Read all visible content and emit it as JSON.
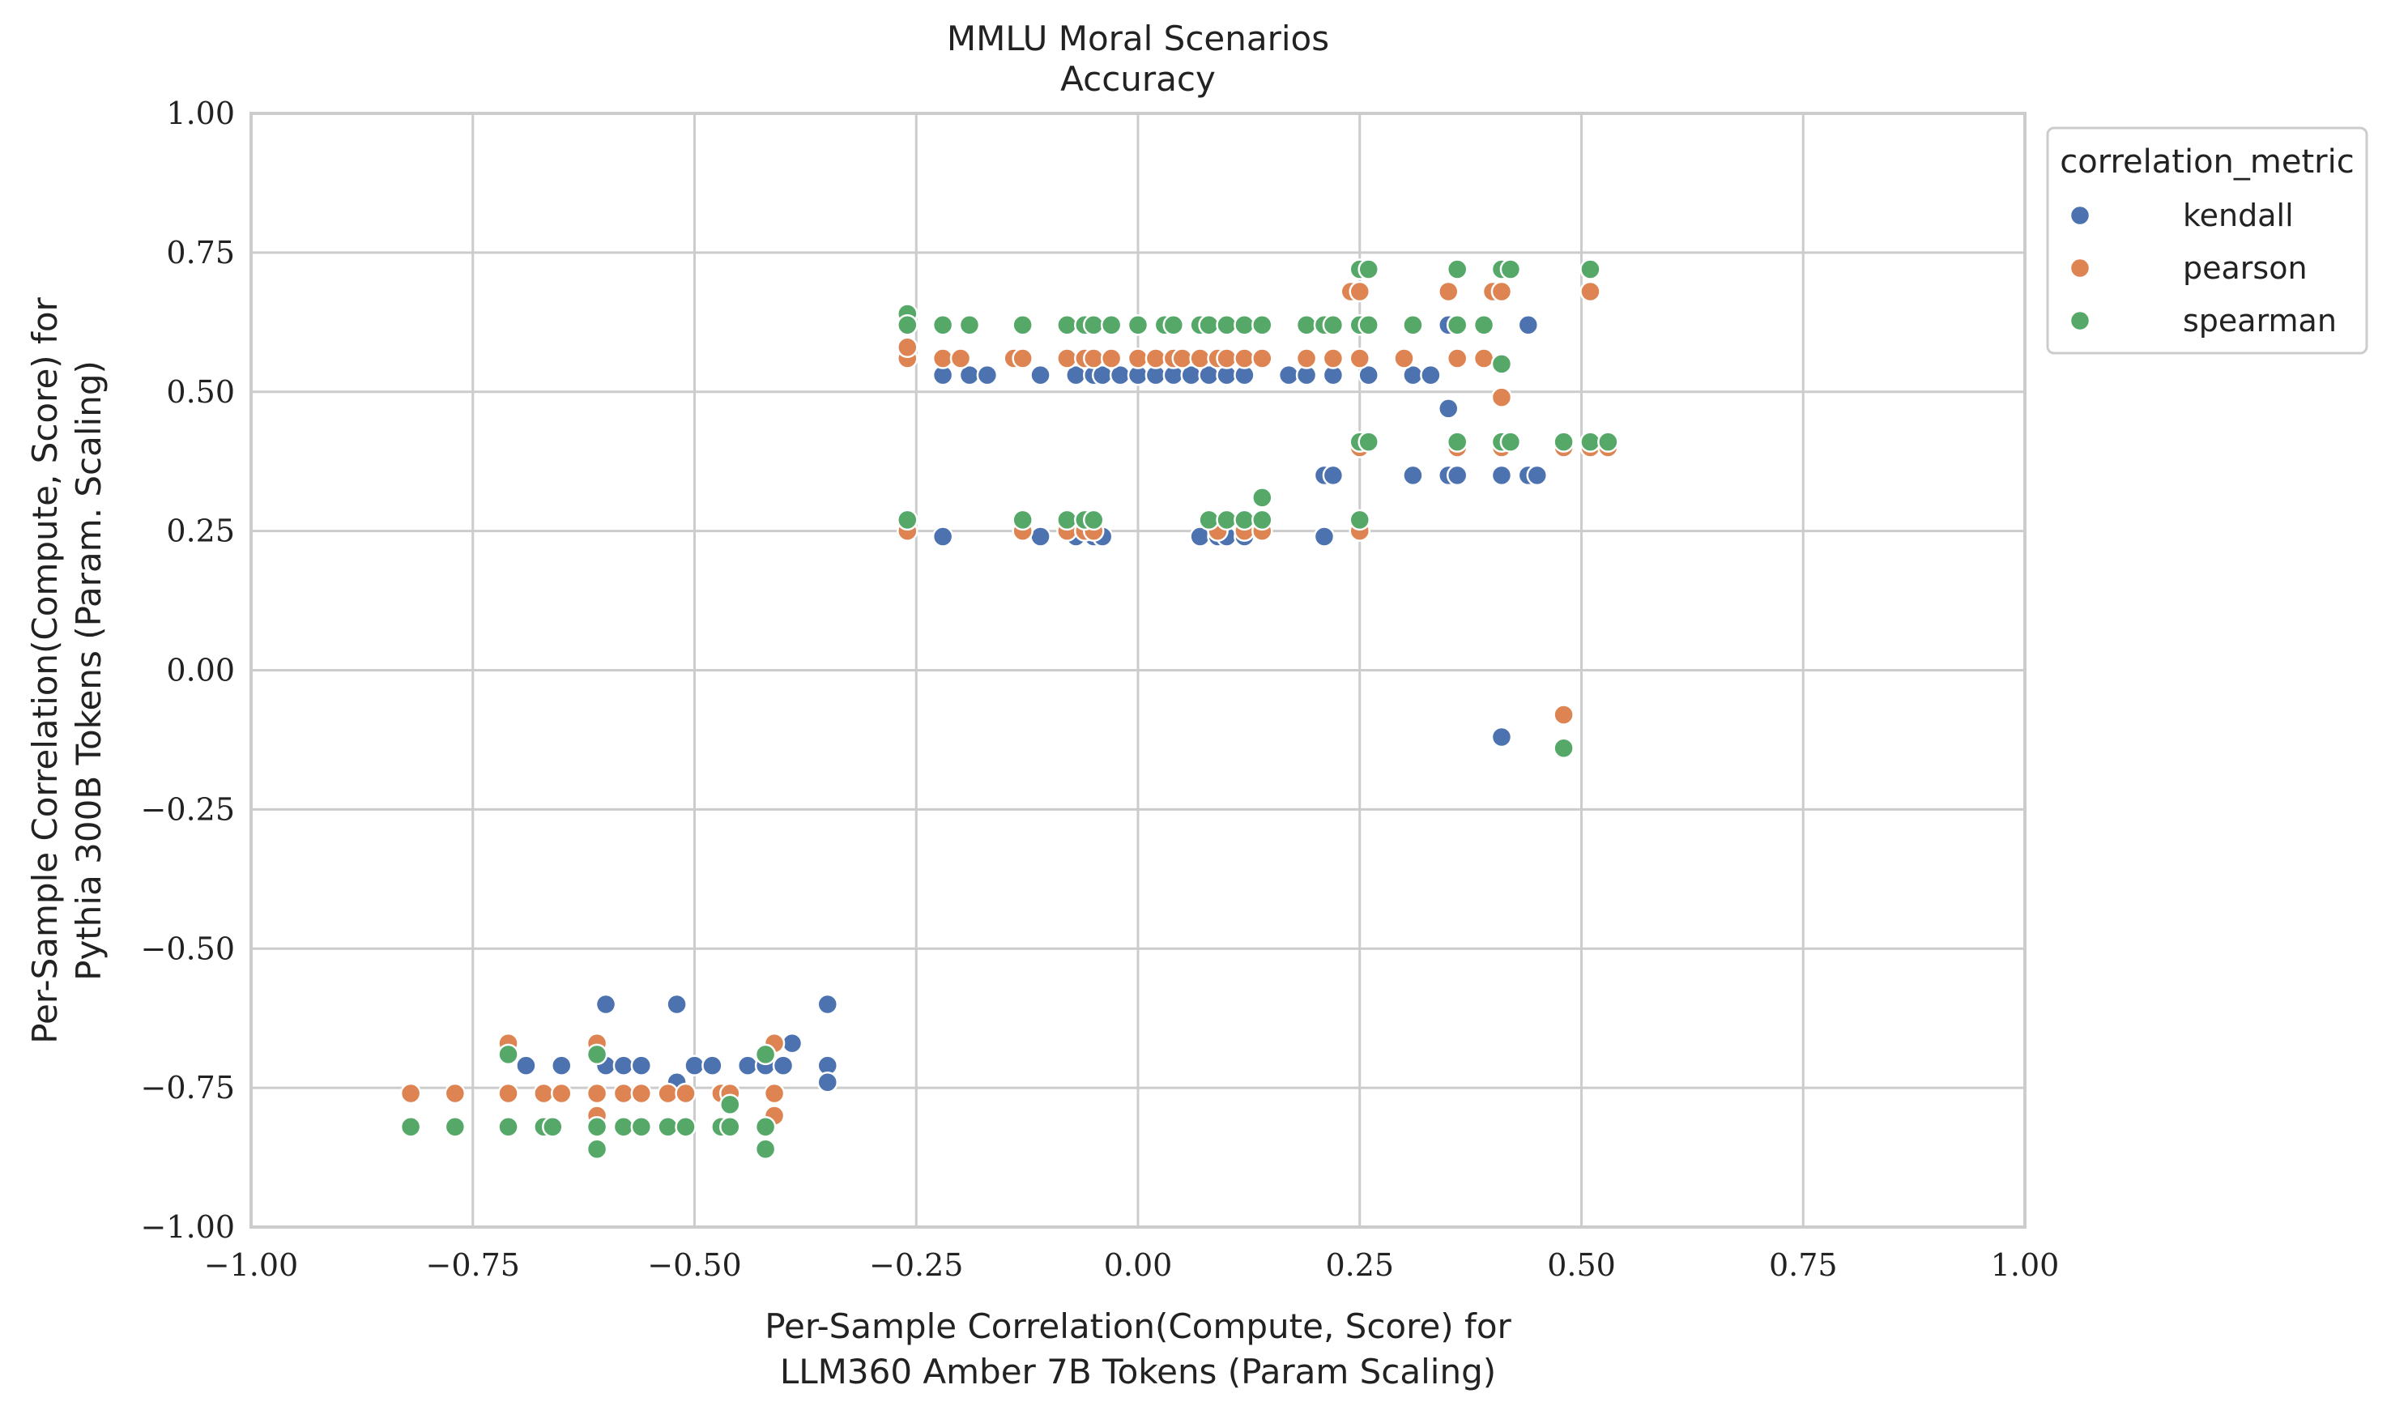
{
  "chart_data": {
    "type": "scatter",
    "title": "MMLU Moral Scenarios",
    "subtitle": "Accuracy",
    "xlabel_line1": "Per-Sample Correlation(Compute, Score) for",
    "xlabel_line2": "LLM360 Amber 7B Tokens (Param Scaling)",
    "ylabel_line1": "Per-Sample Correlation(Compute, Score) for",
    "ylabel_line2": "Pythia 300B Tokens (Param. Scaling)",
    "xlim": [
      -1.0,
      1.0
    ],
    "ylim": [
      -1.0,
      1.0
    ],
    "xticks": [
      -1.0,
      -0.75,
      -0.5,
      -0.25,
      0.0,
      0.25,
      0.5,
      0.75,
      1.0
    ],
    "yticks": [
      -1.0,
      -0.75,
      -0.5,
      -0.25,
      0.0,
      0.25,
      0.5,
      0.75,
      1.0
    ],
    "xtick_labels": [
      "−1.00",
      "−0.75",
      "−0.50",
      "−0.25",
      "0.00",
      "0.25",
      "0.50",
      "0.75",
      "1.00"
    ],
    "ytick_labels": [
      "−1.00",
      "−0.75",
      "−0.50",
      "−0.25",
      "0.00",
      "0.25",
      "0.50",
      "0.75",
      "1.00"
    ],
    "grid": true,
    "legend": {
      "title": "correlation_metric",
      "placement": "outside-top-right"
    },
    "series": [
      {
        "name": "kendall",
        "color": "#4c72b0",
        "points": [
          [
            -0.6,
            -0.6
          ],
          [
            -0.52,
            -0.6
          ],
          [
            -0.35,
            -0.6
          ],
          [
            -0.69,
            -0.71
          ],
          [
            -0.65,
            -0.71
          ],
          [
            -0.6,
            -0.71
          ],
          [
            -0.58,
            -0.71
          ],
          [
            -0.56,
            -0.71
          ],
          [
            -0.5,
            -0.71
          ],
          [
            -0.48,
            -0.71
          ],
          [
            -0.44,
            -0.71
          ],
          [
            -0.42,
            -0.71
          ],
          [
            -0.4,
            -0.71
          ],
          [
            -0.35,
            -0.71
          ],
          [
            -0.39,
            -0.67
          ],
          [
            -0.52,
            -0.74
          ],
          [
            -0.35,
            -0.74
          ],
          [
            -0.22,
            0.53
          ],
          [
            -0.19,
            0.53
          ],
          [
            -0.17,
            0.53
          ],
          [
            -0.11,
            0.53
          ],
          [
            -0.07,
            0.53
          ],
          [
            -0.05,
            0.53
          ],
          [
            -0.04,
            0.53
          ],
          [
            -0.02,
            0.53
          ],
          [
            0.0,
            0.53
          ],
          [
            0.02,
            0.53
          ],
          [
            0.04,
            0.53
          ],
          [
            0.06,
            0.53
          ],
          [
            0.08,
            0.53
          ],
          [
            0.1,
            0.53
          ],
          [
            0.12,
            0.53
          ],
          [
            0.17,
            0.53
          ],
          [
            0.19,
            0.53
          ],
          [
            0.22,
            0.53
          ],
          [
            0.26,
            0.53
          ],
          [
            0.31,
            0.53
          ],
          [
            0.33,
            0.53
          ],
          [
            -0.22,
            0.24
          ],
          [
            -0.11,
            0.24
          ],
          [
            -0.07,
            0.24
          ],
          [
            -0.05,
            0.24
          ],
          [
            -0.04,
            0.24
          ],
          [
            0.07,
            0.24
          ],
          [
            0.09,
            0.24
          ],
          [
            0.1,
            0.24
          ],
          [
            0.12,
            0.24
          ],
          [
            0.21,
            0.24
          ],
          [
            0.21,
            0.35
          ],
          [
            0.22,
            0.35
          ],
          [
            0.31,
            0.35
          ],
          [
            0.35,
            0.35
          ],
          [
            0.36,
            0.35
          ],
          [
            0.41,
            0.35
          ],
          [
            0.44,
            0.35
          ],
          [
            0.45,
            0.35
          ],
          [
            0.35,
            0.47
          ],
          [
            0.35,
            0.62
          ],
          [
            0.36,
            0.62
          ],
          [
            0.44,
            0.62
          ],
          [
            0.41,
            -0.12
          ]
        ]
      },
      {
        "name": "pearson",
        "color": "#dd8452",
        "points": [
          [
            -0.82,
            -0.76
          ],
          [
            -0.77,
            -0.76
          ],
          [
            -0.71,
            -0.76
          ],
          [
            -0.67,
            -0.76
          ],
          [
            -0.65,
            -0.76
          ],
          [
            -0.61,
            -0.76
          ],
          [
            -0.58,
            -0.76
          ],
          [
            -0.56,
            -0.76
          ],
          [
            -0.53,
            -0.76
          ],
          [
            -0.51,
            -0.76
          ],
          [
            -0.47,
            -0.76
          ],
          [
            -0.46,
            -0.76
          ],
          [
            -0.41,
            -0.76
          ],
          [
            -0.71,
            -0.67
          ],
          [
            -0.61,
            -0.67
          ],
          [
            -0.41,
            -0.67
          ],
          [
            -0.61,
            -0.8
          ],
          [
            -0.41,
            -0.8
          ],
          [
            -0.26,
            0.56
          ],
          [
            -0.26,
            0.58
          ],
          [
            -0.22,
            0.56
          ],
          [
            -0.2,
            0.56
          ],
          [
            -0.14,
            0.56
          ],
          [
            -0.13,
            0.56
          ],
          [
            -0.08,
            0.56
          ],
          [
            -0.06,
            0.56
          ],
          [
            -0.05,
            0.56
          ],
          [
            -0.03,
            0.56
          ],
          [
            0.0,
            0.56
          ],
          [
            0.02,
            0.56
          ],
          [
            0.04,
            0.56
          ],
          [
            0.05,
            0.56
          ],
          [
            0.07,
            0.56
          ],
          [
            0.09,
            0.56
          ],
          [
            0.1,
            0.56
          ],
          [
            0.12,
            0.56
          ],
          [
            0.14,
            0.56
          ],
          [
            0.19,
            0.56
          ],
          [
            0.22,
            0.56
          ],
          [
            0.25,
            0.56
          ],
          [
            0.3,
            0.56
          ],
          [
            0.36,
            0.56
          ],
          [
            0.39,
            0.56
          ],
          [
            0.24,
            0.68
          ],
          [
            0.25,
            0.68
          ],
          [
            0.35,
            0.68
          ],
          [
            0.4,
            0.68
          ],
          [
            0.41,
            0.68
          ],
          [
            0.51,
            0.68
          ],
          [
            -0.26,
            0.25
          ],
          [
            -0.13,
            0.25
          ],
          [
            -0.08,
            0.25
          ],
          [
            -0.06,
            0.25
          ],
          [
            -0.05,
            0.25
          ],
          [
            0.09,
            0.25
          ],
          [
            0.12,
            0.25
          ],
          [
            0.14,
            0.25
          ],
          [
            0.25,
            0.25
          ],
          [
            0.25,
            0.4
          ],
          [
            0.36,
            0.4
          ],
          [
            0.41,
            0.4
          ],
          [
            0.48,
            0.4
          ],
          [
            0.51,
            0.4
          ],
          [
            0.53,
            0.4
          ],
          [
            0.41,
            0.49
          ],
          [
            0.48,
            -0.08
          ]
        ]
      },
      {
        "name": "spearman",
        "color": "#55a868",
        "points": [
          [
            -0.82,
            -0.82
          ],
          [
            -0.77,
            -0.82
          ],
          [
            -0.71,
            -0.82
          ],
          [
            -0.67,
            -0.82
          ],
          [
            -0.66,
            -0.82
          ],
          [
            -0.61,
            -0.82
          ],
          [
            -0.58,
            -0.82
          ],
          [
            -0.56,
            -0.82
          ],
          [
            -0.53,
            -0.82
          ],
          [
            -0.51,
            -0.82
          ],
          [
            -0.47,
            -0.82
          ],
          [
            -0.46,
            -0.82
          ],
          [
            -0.42,
            -0.82
          ],
          [
            -0.71,
            -0.69
          ],
          [
            -0.61,
            -0.69
          ],
          [
            -0.42,
            -0.69
          ],
          [
            -0.61,
            -0.86
          ],
          [
            -0.42,
            -0.86
          ],
          [
            -0.46,
            -0.78
          ],
          [
            -0.26,
            0.64
          ],
          [
            -0.26,
            0.62
          ],
          [
            -0.22,
            0.62
          ],
          [
            -0.19,
            0.62
          ],
          [
            -0.13,
            0.62
          ],
          [
            -0.08,
            0.62
          ],
          [
            -0.06,
            0.62
          ],
          [
            -0.05,
            0.62
          ],
          [
            -0.03,
            0.62
          ],
          [
            0.0,
            0.62
          ],
          [
            0.03,
            0.62
          ],
          [
            0.04,
            0.62
          ],
          [
            0.07,
            0.62
          ],
          [
            0.08,
            0.62
          ],
          [
            0.1,
            0.62
          ],
          [
            0.12,
            0.62
          ],
          [
            0.14,
            0.62
          ],
          [
            0.19,
            0.62
          ],
          [
            0.21,
            0.62
          ],
          [
            0.22,
            0.62
          ],
          [
            0.25,
            0.62
          ],
          [
            0.26,
            0.62
          ],
          [
            0.31,
            0.62
          ],
          [
            0.36,
            0.62
          ],
          [
            0.39,
            0.62
          ],
          [
            0.25,
            0.72
          ],
          [
            0.26,
            0.72
          ],
          [
            0.36,
            0.72
          ],
          [
            0.41,
            0.72
          ],
          [
            0.42,
            0.72
          ],
          [
            0.51,
            0.72
          ],
          [
            -0.26,
            0.27
          ],
          [
            -0.13,
            0.27
          ],
          [
            -0.08,
            0.27
          ],
          [
            -0.06,
            0.27
          ],
          [
            -0.05,
            0.27
          ],
          [
            0.08,
            0.27
          ],
          [
            0.1,
            0.27
          ],
          [
            0.12,
            0.27
          ],
          [
            0.14,
            0.27
          ],
          [
            0.14,
            0.31
          ],
          [
            0.25,
            0.27
          ],
          [
            0.25,
            0.41
          ],
          [
            0.26,
            0.41
          ],
          [
            0.36,
            0.41
          ],
          [
            0.41,
            0.41
          ],
          [
            0.42,
            0.41
          ],
          [
            0.48,
            0.41
          ],
          [
            0.51,
            0.41
          ],
          [
            0.53,
            0.41
          ],
          [
            0.41,
            0.55
          ],
          [
            0.48,
            -0.14
          ]
        ]
      }
    ]
  }
}
